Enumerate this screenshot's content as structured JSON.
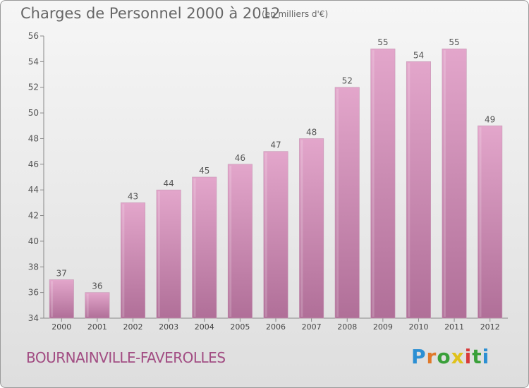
{
  "header": {
    "title": "Charges de Personnel 2000 à 2012",
    "subtitle": "(en milliers d'€)"
  },
  "footer": {
    "city": "BOURNAINVILLE-FAVEROLLES",
    "logo_text": "Proxiti",
    "logo_letters": [
      "P",
      "r",
      "o",
      "x",
      "i",
      "t",
      "i"
    ]
  },
  "colors": {
    "bar_top": "#e3a6cb",
    "bar_bottom": "#b06f98",
    "text": "#666666",
    "city": "#a24d83"
  },
  "chart_data": {
    "type": "bar",
    "title": "Charges de Personnel 2000 à 2012",
    "subtitle": "(en milliers d'€)",
    "xlabel": "",
    "ylabel": "",
    "categories": [
      "2000",
      "2001",
      "2002",
      "2003",
      "2004",
      "2005",
      "2006",
      "2007",
      "2008",
      "2009",
      "2010",
      "2011",
      "2012"
    ],
    "values": [
      37,
      36,
      43,
      44,
      45,
      46,
      47,
      48,
      52,
      55,
      54,
      55,
      49
    ],
    "ylim": [
      34,
      56
    ],
    "yticks": [
      34,
      36,
      38,
      40,
      42,
      44,
      46,
      48,
      50,
      52,
      54,
      56
    ],
    "grid": false,
    "data_labels": true,
    "legend": "none"
  }
}
